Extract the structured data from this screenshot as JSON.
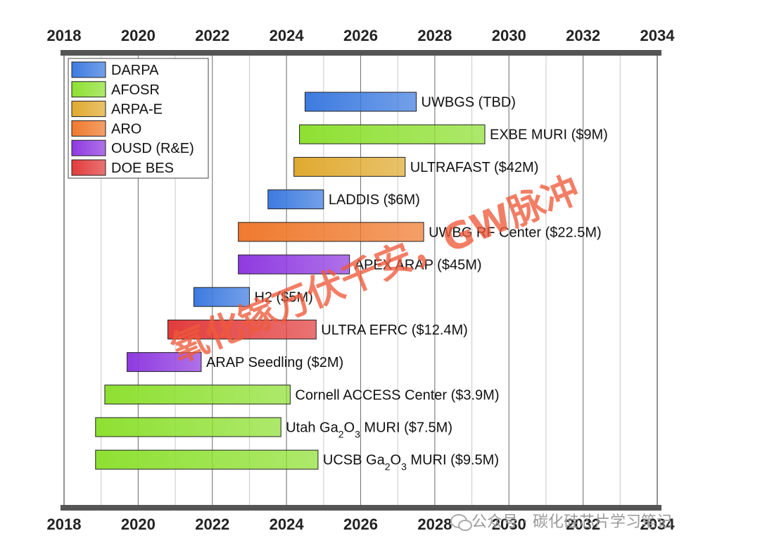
{
  "chart_data": {
    "type": "gantt",
    "x_ticks": [
      2018,
      2020,
      2022,
      2024,
      2026,
      2028,
      2030,
      2032,
      2034
    ],
    "xlim": [
      2018,
      2034
    ],
    "grid": true,
    "legend_position": "top-left",
    "legend": [
      {
        "name": "DARPA",
        "color": "#3d7be0"
      },
      {
        "name": "AFOSR",
        "color": "#8ee032"
      },
      {
        "name": "ARPA-E",
        "color": "#e0aa30"
      },
      {
        "name": "ARO",
        "color": "#ef7a2e"
      },
      {
        "name": "OUSD (R&E)",
        "color": "#8f3ae0"
      },
      {
        "name": "DOE BES",
        "color": "#e23c3c"
      }
    ],
    "bars": [
      {
        "label": "UWBGS (TBD)",
        "sponsor": "DARPA",
        "start": 2024.5,
        "end": 2027.5
      },
      {
        "label": "EXBE MURI ($9M)",
        "sponsor": "AFOSR",
        "start": 2024.35,
        "end": 2029.35
      },
      {
        "label": "ULTRAFAST ($42M)",
        "sponsor": "ARPA-E",
        "start": 2024.2,
        "end": 2027.2
      },
      {
        "label": "LADDIS ($6M)",
        "sponsor": "DARPA",
        "start": 2023.5,
        "end": 2025.0
      },
      {
        "label": "UWBG RF Center ($22.5M)",
        "sponsor": "ARO",
        "start": 2022.7,
        "end": 2027.7
      },
      {
        "label": "APEX ARAP ($45M)",
        "sponsor": "OUSD (R&E)",
        "start": 2022.7,
        "end": 2025.7
      },
      {
        "label": "H2 ($5M)",
        "sponsor": "DARPA",
        "start": 2021.5,
        "end": 2023.0
      },
      {
        "label": "ULTRA EFRC ($12.4M)",
        "sponsor": "DOE BES",
        "start": 2020.8,
        "end": 2024.8
      },
      {
        "label": "ARAP Seedling ($2M)",
        "sponsor": "OUSD (R&E)",
        "start": 2019.7,
        "end": 2021.7
      },
      {
        "label": "Cornell ACCESS Center ($3.9M)",
        "sponsor": "AFOSR",
        "start": 2019.1,
        "end": 2024.1
      },
      {
        "label": "Utah Ga2O3 MURI ($7.5M)",
        "label_parts": [
          [
            "Utah Ga",
            ""
          ],
          [
            "2",
            "sub"
          ],
          [
            "O",
            ""
          ],
          [
            "3",
            "sub"
          ],
          [
            " MURI ($7.5M)",
            ""
          ]
        ],
        "sponsor": "AFOSR",
        "start": 2018.85,
        "end": 2023.85
      },
      {
        "label": "UCSB Ga2O3 MURI ($9.5M)",
        "label_parts": [
          [
            "UCSB Ga",
            ""
          ],
          [
            "2",
            "sub"
          ],
          [
            "O",
            ""
          ],
          [
            "3",
            "sub"
          ],
          [
            " MURI ($9.5M)",
            ""
          ]
        ],
        "sponsor": "AFOSR",
        "start": 2018.85,
        "end": 2024.85
      }
    ]
  },
  "watermark": {
    "text": "氧化镓万伏千安，GW脉冲"
  },
  "source_label": {
    "text": "公众号 · 碳化硅芯片学习笔记"
  }
}
